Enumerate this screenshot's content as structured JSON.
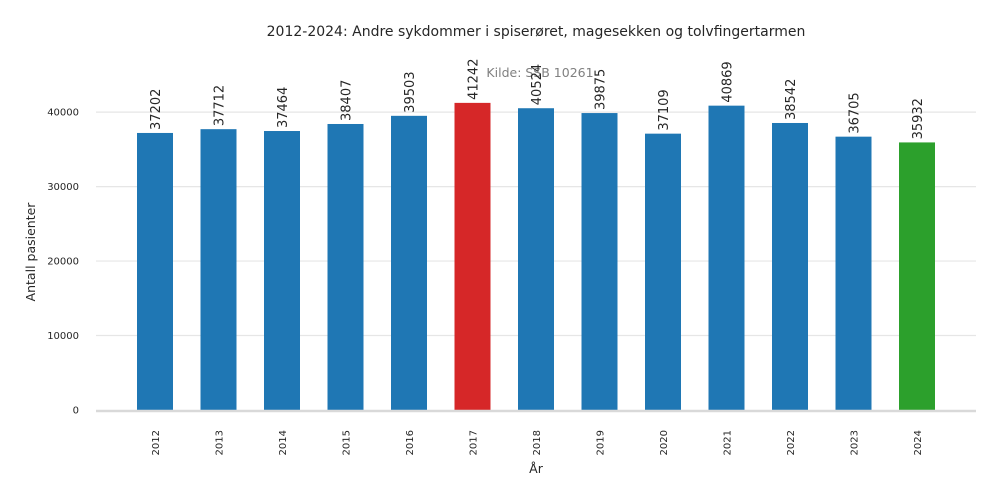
{
  "chart_data": {
    "type": "bar",
    "title": "2012-2024: Andre sykdommer i spiserøret, magesekken og tolvfingertarmen",
    "subtitle": "Kilde: SSB 10261",
    "xlabel": "År",
    "ylabel": "Antall pasienter",
    "categories": [
      "2012",
      "2013",
      "2014",
      "2015",
      "2016",
      "2017",
      "2018",
      "2019",
      "2020",
      "2021",
      "2022",
      "2023",
      "2024"
    ],
    "values": [
      37202,
      37712,
      37464,
      38407,
      39503,
      41242,
      40524,
      39875,
      37109,
      40869,
      38542,
      36705,
      35932
    ],
    "data_labels": [
      "37202",
      "37712",
      "37464",
      "38407",
      "39503",
      "41242",
      "40524",
      "39875",
      "37109",
      "40869",
      "38542",
      "36705",
      "35932"
    ],
    "ylim": [
      0,
      47000
    ],
    "y_ticks": [
      0,
      10000,
      20000,
      30000,
      40000
    ],
    "y_tick_labels": [
      "0",
      "10000",
      "20000",
      "30000",
      "40000"
    ],
    "grid": true,
    "legend": "none",
    "colors": {
      "default": "#1f77b4",
      "max": "#d62728",
      "latest": "#2ca02c"
    },
    "bar_colors": [
      "#1f77b4",
      "#1f77b4",
      "#1f77b4",
      "#1f77b4",
      "#1f77b4",
      "#d62728",
      "#1f77b4",
      "#1f77b4",
      "#1f77b4",
      "#1f77b4",
      "#1f77b4",
      "#1f77b4",
      "#2ca02c"
    ]
  }
}
